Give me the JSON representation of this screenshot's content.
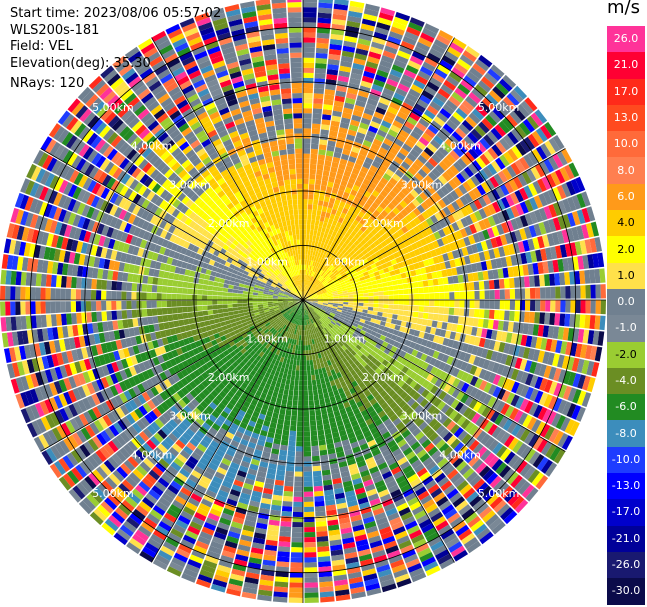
{
  "header": {
    "start_time": "Start time: 2023/08/06 05:57:02",
    "instrument": "WLS200s-181",
    "field": "Field: VEL",
    "elevation": "Elevation(deg): 35.30",
    "nrays": "NRays: 120"
  },
  "colorbar": {
    "unit": "m/s",
    "bins": [
      {
        "label": "26.0",
        "color": "#ff3399"
      },
      {
        "label": "21.0",
        "color": "#ff0033"
      },
      {
        "label": "17.0",
        "color": "#ff2a1a"
      },
      {
        "label": "13.0",
        "color": "#ff4a1f"
      },
      {
        "label": "10.0",
        "color": "#ff6a3a"
      },
      {
        "label": "8.0",
        "color": "#ff7f50"
      },
      {
        "label": "6.0",
        "color": "#ff9a1a"
      },
      {
        "label": "4.0",
        "color": "#ffcc00"
      },
      {
        "label": "2.0",
        "color": "#ffff00"
      },
      {
        "label": "1.0",
        "color": "#ffe14a"
      },
      {
        "label": "0.0",
        "color": "#708090"
      },
      {
        "label": "-1.0",
        "color": "#7a8896"
      },
      {
        "label": "-2.0",
        "color": "#9acd32"
      },
      {
        "label": "-4.0",
        "color": "#6b8e23"
      },
      {
        "label": "-6.0",
        "color": "#228b22"
      },
      {
        "label": "-8.0",
        "color": "#3c8dbc"
      },
      {
        "label": "-10.0",
        "color": "#1e3cff"
      },
      {
        "label": "-13.0",
        "color": "#0000ff"
      },
      {
        "label": "-17.0",
        "color": "#0000cc"
      },
      {
        "label": "-21.0",
        "color": "#000099"
      },
      {
        "label": "-26.0",
        "color": "#191970"
      },
      {
        "label": "-30.0",
        "color": "#0b0b4a"
      }
    ]
  },
  "range_rings": [
    {
      "label": "1.00km",
      "km": 1
    },
    {
      "label": "2.00km",
      "km": 2
    },
    {
      "label": "3.00km",
      "km": 3
    },
    {
      "label": "4.00km",
      "km": 4
    },
    {
      "label": "5.00km",
      "km": 5
    }
  ],
  "ppi": {
    "nrays": 120,
    "max_range_km": 5.0
  }
}
